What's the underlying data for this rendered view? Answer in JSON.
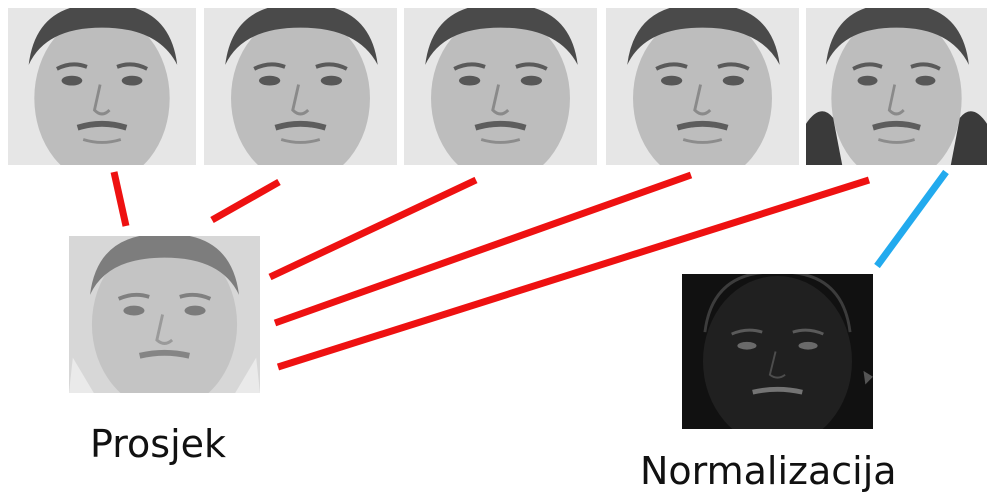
{
  "labels": {
    "average": "Prosjek",
    "normalization": "Normalizacija"
  },
  "colors": {
    "average_link": "#ee1111",
    "normalization_link": "#22aaee",
    "background": "#ffffff",
    "caption_text": "#111111"
  },
  "images": {
    "sample_faces": [
      "face-photo-1",
      "face-photo-2",
      "face-photo-3",
      "face-photo-4",
      "face-photo-5"
    ],
    "average_face": "average-face-photo",
    "normalized_face": "normalized-face-photo"
  }
}
